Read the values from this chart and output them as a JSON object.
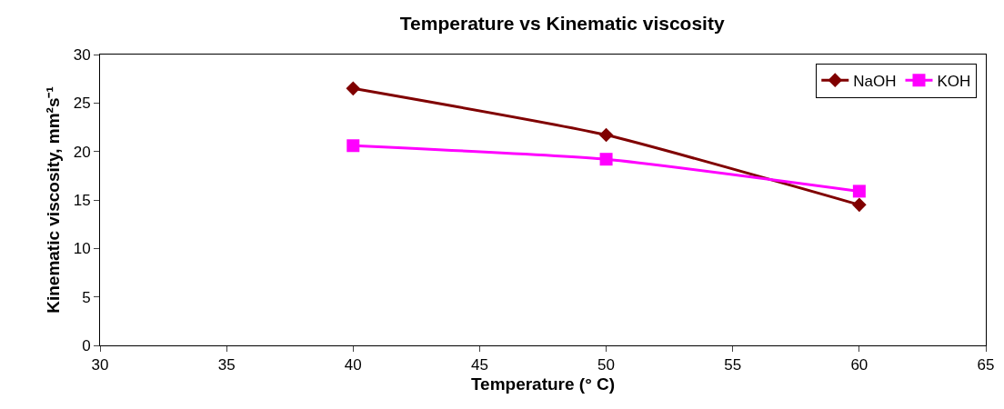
{
  "chart_data": {
    "type": "line",
    "title": "Temperature vs Kinematic viscosity",
    "xlabel": "Temperature (° C)",
    "ylabel": "Kinematic viscosity, mm²s⁻¹",
    "x": [
      40,
      50,
      60
    ],
    "series": [
      {
        "name": "NaOH",
        "color": "#800000",
        "marker": "diamond",
        "values": [
          26.5,
          21.7,
          14.5
        ]
      },
      {
        "name": "KOH",
        "color": "#ff00ff",
        "marker": "square",
        "values": [
          20.6,
          19.2,
          15.9
        ]
      }
    ],
    "xlim": [
      30,
      65
    ],
    "xticks": [
      30,
      35,
      40,
      45,
      50,
      55,
      60,
      65
    ],
    "ylim": [
      0,
      30
    ],
    "yticks": [
      0,
      5,
      10,
      15,
      20,
      25,
      30
    ],
    "grid": false,
    "legend": "top right",
    "line_style": "solid"
  }
}
